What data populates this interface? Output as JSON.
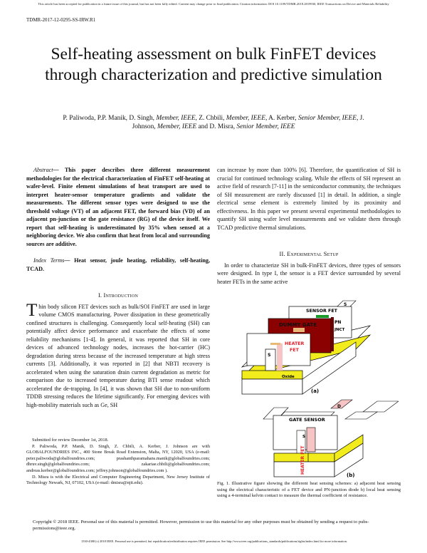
{
  "notice": "This article has been accepted for publication in a future issue of this journal, but has not been fully edited. Content may change prior to final publication. Citation information: DOI 10.1109/TDMR.2018.2819930, IEEE Transactions on Device and Materials Reliability",
  "running_header": "TDMR-2017-12-0295-SS-IRW.R1",
  "title": "Self-heating assessment on bulk FinFET devices through characterization and predictive simulation",
  "authors": {
    "a1": "P. Paliwoda, P.P. Manik, D. Singh, ",
    "m1": "Member, IEEE",
    "a2": ", Z. Chbili, ",
    "m2": "Member, IEEE,",
    "a3": " A. Kerber, ",
    "m3": "Senior Member, IEEE",
    "a4": ", J. Johnson, ",
    "m4": "Member, IEEE",
    "a5": " and D. Misra, ",
    "m5": "Senior Member, IEEE"
  },
  "abstract": {
    "label": "Abstract",
    "text": "— This paper describes three different measurement methodologies for the electrical characterization of FinFET self-heating at wafer-level. Finite element simulations of heat transport are used to interpret heater-sensor temperature gradients and validate the measurements. The different sensor types were designed to use the threshold voltage (VT) of an adjacent FET, the forward bias (VD) of an adjacent pn-junction or the gate resistance (RG) of the device itself. We report that self-heating is underestimated by 35% when sensed at a neighboring device. We also confirm that heat from local and surrounding sources are additive."
  },
  "index_terms": {
    "label": "Index Terms",
    "text": "— Heat sensor, joule heating, reliability, self-heating, TCAD."
  },
  "section1": {
    "heading": "I. Introduction",
    "dropcap": "T",
    "text": "hin body silicon FET devices such as bulk/SOI FinFET are used in large volume CMOS manufacturing. Power dissipation in these geometrically confined structures is challenging. Consequently local self-heating (SH) can potentially affect device performance and exacerbate the effects of some reliability mechanisms [1-4]. In general, it was reported that SH in core devices of advanced technology nodes, increases the hot-carrier (HC) degradation during stress because of the increased temperature at high stress currents [3]. Additionally, it was reported in [2] that NBTI recovery is accelerated when using the saturation drain current degradation as metric for comparison due to increased temperature during BTI sense readout which accelerated the de-trapping. In [4], it was shown that SH due to non-uniform TDDB stressing reduces the lifetime significantly. For emerging devices with high-mobility materials such as Ge, SH"
  },
  "footnotes": [
    "Submitted for review December 1st, 2018.",
    "P. Paliwoda, P.P. Manik, D. Singh, Z. Chbili, A. Kerber, J. Johnson are with GLOBALFOUNDRIES INC., 400 Stone Break Road Extension, Malta, NY, 12020, USA (e-mail: peter.paliwoda@globalfoundries.com; prashanthparamahans.manik@globalfoundries.com; dhruv.singh@globalfoundries.com; zakariae.chbili@globalfoundries.com; andreas.kerber@globalfoundries.com; jeffrey.johnson@globalfoundries.com ).",
    "D. Misra is with the Electrical and Computer Engineering Department, New Jersey Institute of Technology Newark, NJ, 07102, USA (e-mail: dmisra@njit.edu)."
  ],
  "right_intro": "can increase by more than 100% [6]. Therefore, the quantification of SH is crucial for continued technology scaling.  While the effects of SH represent an active field of research [7-11] in the semiconductor community, the techniques of SH measurement are rarely discussed [1] in detail. In addition, a single electrical sense element is extremely limited by its proximity and effectiveness.  In this paper we present several experimental methodologies to quantify SH using wafer level measurements and we validate them through TCAD predictive thermal simulations.",
  "section2": {
    "heading": "II. Experimental Setup",
    "text": "In order to characterize SH in bulk-FinFET devices, three types of sensors were designed. In type I, the sensor is a FET device surrounded by several heater FETs in the same active"
  },
  "figure": {
    "a": {
      "s_top": "S",
      "sensor_fet": "SENSOR FET",
      "pn": "PN",
      "jnct": "JNCT",
      "dummy_gate": "DUMMY GATE",
      "heater": "HEATER",
      "fet": "FET",
      "s": "S",
      "oxide": "Oxide",
      "label": "(a)"
    },
    "b": {
      "gate_sensor": "GATE SENSOR",
      "d": "D",
      "s": "S",
      "heater_fet": "HEATER FET",
      "label": "(b)"
    },
    "caption": "Fig. 1.  Illustrative figure showing the different heat sensing schemes: a) adjacent heat sensing using the electrical characteristic of a FET device and PN-junction diode b) local heat sensing using a 4-terminal kelvin contact to measure the thermal coefficient of resistance."
  },
  "copyright": "Copyright © 2018 IEEE. Personal use of this material is permitted.  However, permission to use this material for any other purposes must be obtained by sending a request to pubs-permissions@ieee.org.",
  "bottom_notice": "1530-4388 (c) 2018 IEEE. Personal use is permitted, but republication/redistribution requires IEEE permission. See http://www.ieee.org/publications_standards/publications/rights/index.html for more information.",
  "colors": {
    "heater_red": "#e8202a",
    "dummy_gate": "#8b0000",
    "oxide_yellow": "#f2ec1c",
    "contact_tan": "#e8b878"
  }
}
